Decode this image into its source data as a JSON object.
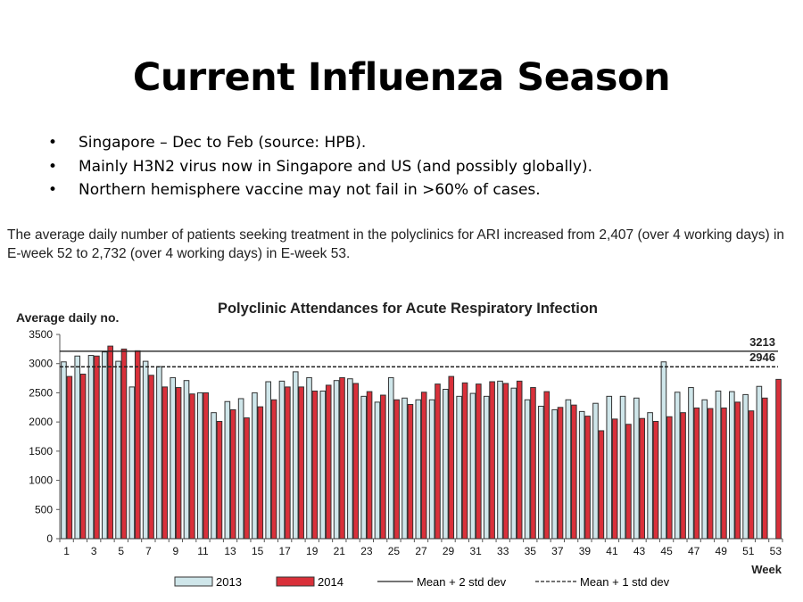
{
  "slide": {
    "title": "Current Influenza Season",
    "bullets": [
      "Singapore – Dec to Feb (source: HPB).",
      "Mainly H3N2 virus now in Singapore and US (and possibly globally).",
      "Northern hemisphere vaccine may not fail in >60% of cases."
    ],
    "bullet_glyph": "•",
    "paragraph": "The average daily number of patients seeking treatment in the polyclinics for ARI increased from 2,407 (over 4 working days) in E-week 52 to 2,732  (over 4 working days) in E-week 53."
  },
  "chart_data": {
    "type": "bar",
    "title": "Polyclinic Attendances for Acute Respiratory Infection",
    "ylabel": "Average daily no.",
    "xlabel": "Week",
    "ylim": [
      0,
      3500
    ],
    "yticks": [
      0,
      500,
      1000,
      1500,
      2000,
      2500,
      3000,
      3500
    ],
    "xtick_labels": [
      "1",
      "3",
      "5",
      "7",
      "9",
      "11",
      "13",
      "15",
      "17",
      "19",
      "21",
      "23",
      "25",
      "27",
      "29",
      "31",
      "33",
      "35",
      "37",
      "39",
      "41",
      "43",
      "45",
      "47",
      "49",
      "51",
      "53"
    ],
    "weeks": 53,
    "series": [
      {
        "name": "2013",
        "color": "#cfe6ea",
        "values": [
          3030,
          3130,
          3140,
          3200,
          3040,
          2600,
          3040,
          2950,
          2760,
          2710,
          2500,
          2160,
          2350,
          2400,
          2500,
          2690,
          2700,
          2860,
          2760,
          2530,
          2710,
          2740,
          2440,
          2340,
          2760,
          2410,
          2380,
          2380,
          2560,
          2440,
          2490,
          2440,
          2700,
          2580,
          2380,
          2270,
          2210,
          2380,
          2180,
          2320,
          2440,
          2440,
          2410,
          2160,
          3030,
          2510,
          2590,
          2380,
          2530,
          2520,
          2470,
          2610,
          null
        ]
      },
      {
        "name": "2014",
        "color": "#d9303a",
        "values": [
          2780,
          2820,
          3130,
          3300,
          3250,
          3220,
          2800,
          2600,
          2590,
          2480,
          2500,
          2010,
          2210,
          2070,
          2260,
          2380,
          2600,
          2600,
          2530,
          2630,
          2760,
          2660,
          2520,
          2460,
          2380,
          2300,
          2510,
          2650,
          2780,
          2670,
          2650,
          2690,
          2660,
          2700,
          2590,
          2520,
          2250,
          2290,
          2100,
          1850,
          2050,
          1960,
          2060,
          2010,
          2090,
          2160,
          2240,
          2230,
          2240,
          2340,
          2190,
          2410,
          2730
        ]
      }
    ],
    "reference_lines": [
      {
        "name": "Mean + 2 std dev",
        "value": 3213,
        "label": "3213",
        "style": "solid"
      },
      {
        "name": "Mean + 1 std dev",
        "value": 2946,
        "label": "2946",
        "style": "dashed"
      }
    ],
    "legend": {
      "placement": "bottom",
      "entries": [
        "2013",
        "2014",
        "Mean + 2 std dev",
        "Mean + 1 std dev"
      ]
    },
    "grid": false
  }
}
